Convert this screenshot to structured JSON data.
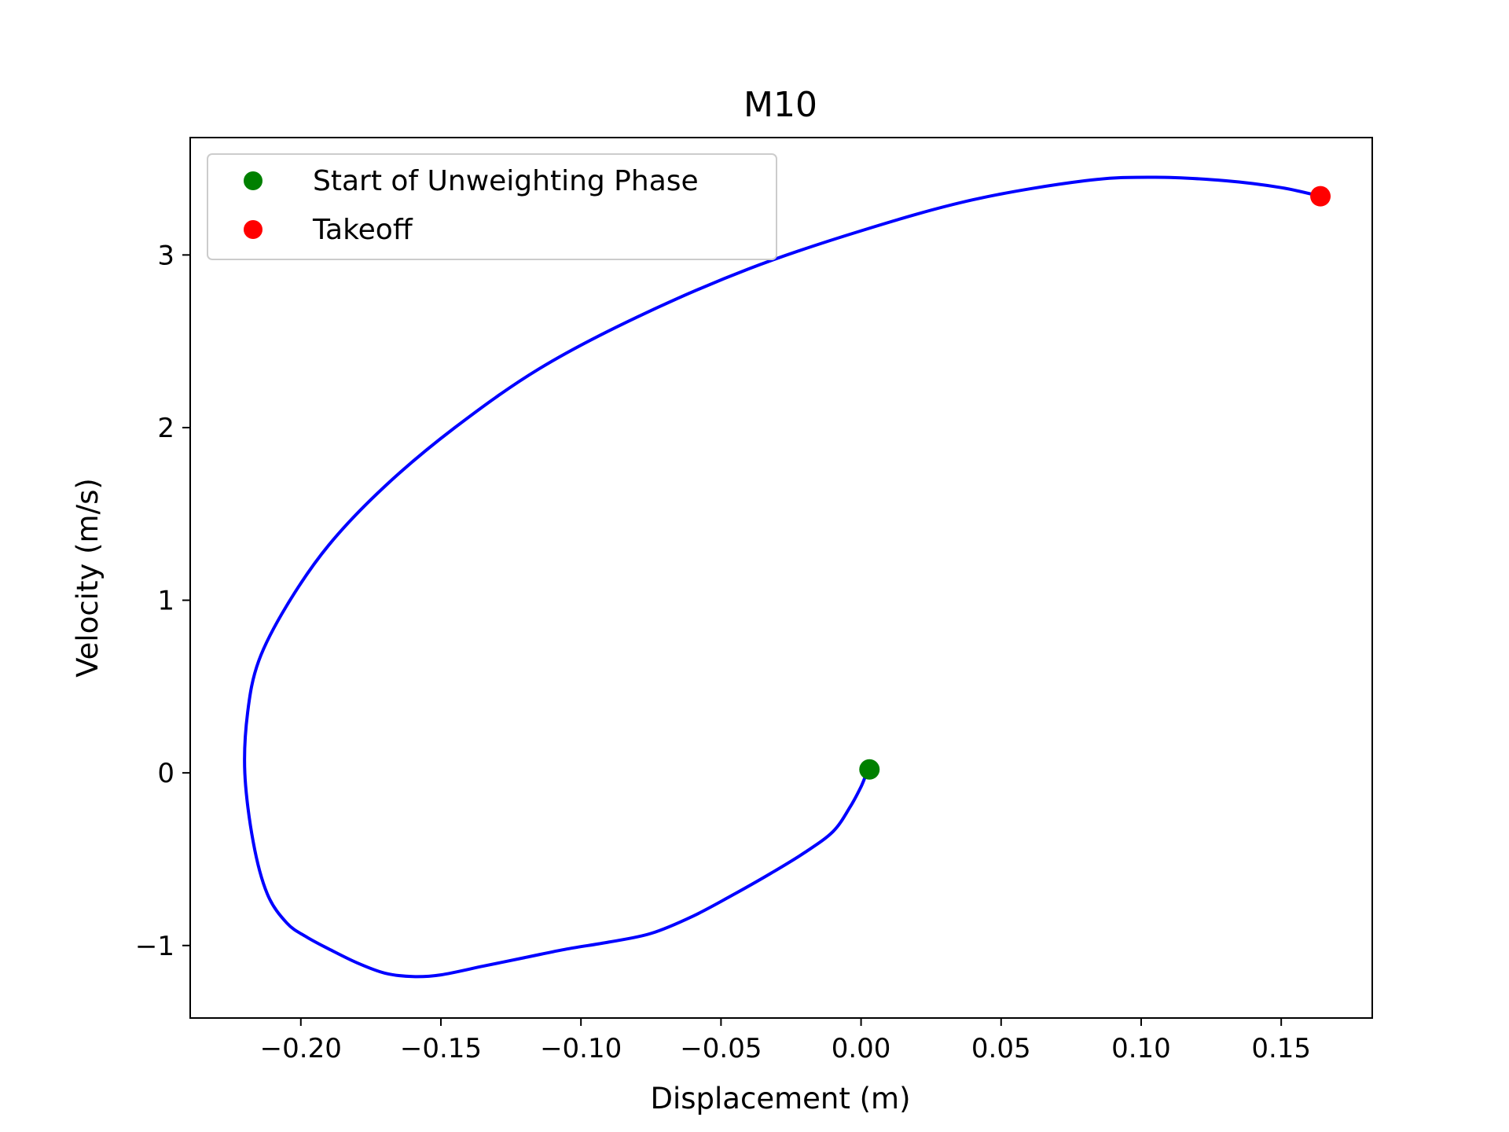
{
  "chart_data": {
    "type": "line",
    "title": "M10",
    "xlabel": "Displacement (m)",
    "ylabel": "Velocity (m/s)",
    "xlim": [
      -0.2395,
      0.1825
    ],
    "ylim": [
      -1.42,
      3.68
    ],
    "xticks": [
      -0.2,
      -0.15,
      -0.1,
      -0.05,
      0.0,
      0.05,
      0.1,
      0.15
    ],
    "xtick_labels": [
      "−0.20",
      "−0.15",
      "−0.10",
      "−0.05",
      "0.00",
      "0.05",
      "0.10",
      "0.15"
    ],
    "yticks": [
      -1,
      0,
      1,
      2,
      3
    ],
    "ytick_labels": [
      "−1",
      "0",
      "1",
      "2",
      "3"
    ],
    "grid": false,
    "legend_position": "top-left",
    "series": [
      {
        "color": "#0000ff",
        "x": [
          0.002,
          0.0,
          -0.004,
          -0.01,
          -0.02,
          -0.032,
          -0.045,
          -0.06,
          -0.075,
          -0.09,
          -0.105,
          -0.12,
          -0.135,
          -0.15,
          -0.16,
          -0.17,
          -0.18,
          -0.19,
          -0.198,
          -0.205,
          -0.212,
          -0.217,
          -0.22,
          -0.219,
          -0.215,
          -0.205,
          -0.19,
          -0.17,
          -0.145,
          -0.115,
          -0.08,
          -0.04,
          0.0,
          0.04,
          0.08,
          0.105,
          0.13,
          0.15,
          0.164
        ],
        "y": [
          0.0,
          -0.08,
          -0.2,
          -0.34,
          -0.46,
          -0.58,
          -0.7,
          -0.83,
          -0.93,
          -0.98,
          -1.02,
          -1.07,
          -1.12,
          -1.17,
          -1.18,
          -1.16,
          -1.1,
          -1.02,
          -0.95,
          -0.87,
          -0.7,
          -0.4,
          0.0,
          0.35,
          0.65,
          0.97,
          1.32,
          1.66,
          2.0,
          2.34,
          2.64,
          2.92,
          3.14,
          3.32,
          3.43,
          3.45,
          3.43,
          3.39,
          3.34
        ]
      }
    ],
    "markers": [
      {
        "name": "Start of Unweighting Phase",
        "x": 0.003,
        "y": 0.02,
        "color": "#008000"
      },
      {
        "name": "Takeoff",
        "x": 0.164,
        "y": 3.34,
        "color": "#ff0000"
      }
    ]
  }
}
